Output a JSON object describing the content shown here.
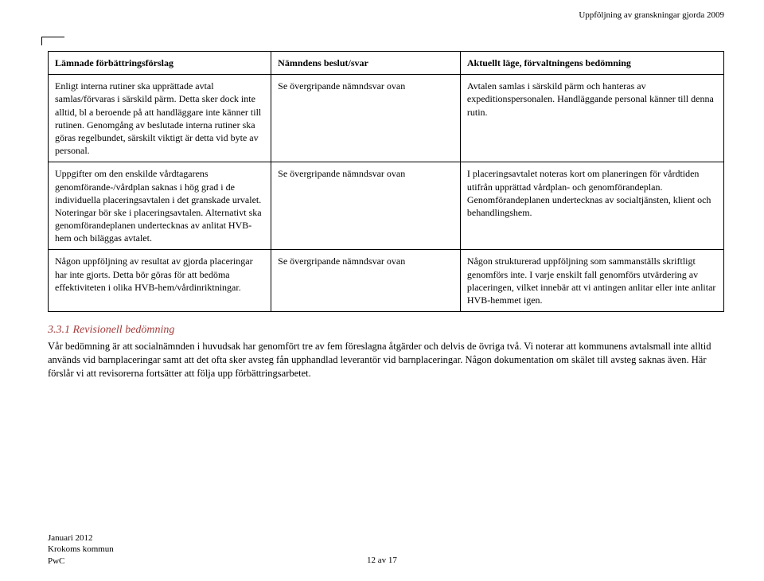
{
  "runningHead": "Uppföljning av granskningar gjorda 2009",
  "table": {
    "headers": {
      "col1": "Lämnade förbättringsförslag",
      "col2": "Nämndens beslut/svar",
      "col3": "Aktuellt läge, förvaltningens bedömning"
    },
    "rows": [
      {
        "c1": "Enligt interna rutiner ska upprättade avtal samlas/förvaras i särskild pärm. Detta sker dock inte alltid, bl a beroende på att handläggare inte känner till rutinen. Genomgång av beslutade interna rutiner ska göras regelbundet, särskilt viktigt är detta vid byte av personal.",
        "c2": "Se övergripande nämndsvar ovan",
        "c3": "Avtalen samlas i särskild pärm och hanteras av expeditionspersonalen. Handläggande personal känner till denna rutin."
      },
      {
        "c1": "Uppgifter om den enskilde vårdtagarens genomförande-/vårdplan saknas i hög grad i de individuella placeringsavtalen i det granskade urvalet. Noteringar bör ske i placeringsavtalen. Alternativt ska genomförandeplanen undertecknas av anlitat HVB-hem och biläggas avtalet.",
        "c2": "Se övergripande nämndsvar ovan",
        "c3": "I placeringsavtalet noteras kort om planeringen för vårdtiden utifrån upprättad vårdplan- och genomförandeplan. Genomförandeplanen undertecknas av socialtjänsten, klient och behandlingshem."
      },
      {
        "c1": "Någon uppföljning av resultat av gjorda placeringar har inte gjorts. Detta bör göras för att bedöma effektiviteten i olika HVB-hem/vårdinriktningar.",
        "c2": "Se övergripande nämndsvar ovan",
        "c3": "Någon strukturerad uppföljning som sammanställs skriftligt genomförs inte. I varje enskilt fall genomförs utvärdering av placeringen, vilket innebär att vi antingen anlitar eller inte anlitar HVB-hemmet igen."
      }
    ]
  },
  "section": {
    "heading": "3.3.1 Revisionell bedömning",
    "para": "Vår bedömning är att socialnämnden i huvudsak har genomfört tre av fem föreslagna åtgärder och delvis de övriga två. Vi noterar att kommunens avtalsmall inte alltid används vid barnplaceringar samt att det ofta sker avsteg fån upphandlad leverantör vid barnplaceringar. Någon dokumentation om skälet till avsteg saknas även. Här förslår vi att revisorerna fortsätter att följa upp förbättringsarbetet."
  },
  "footer": {
    "line1": "Januari 2012",
    "line2": "Krokoms kommun",
    "line3": "PwC"
  },
  "pageNumber": "12 av 17"
}
